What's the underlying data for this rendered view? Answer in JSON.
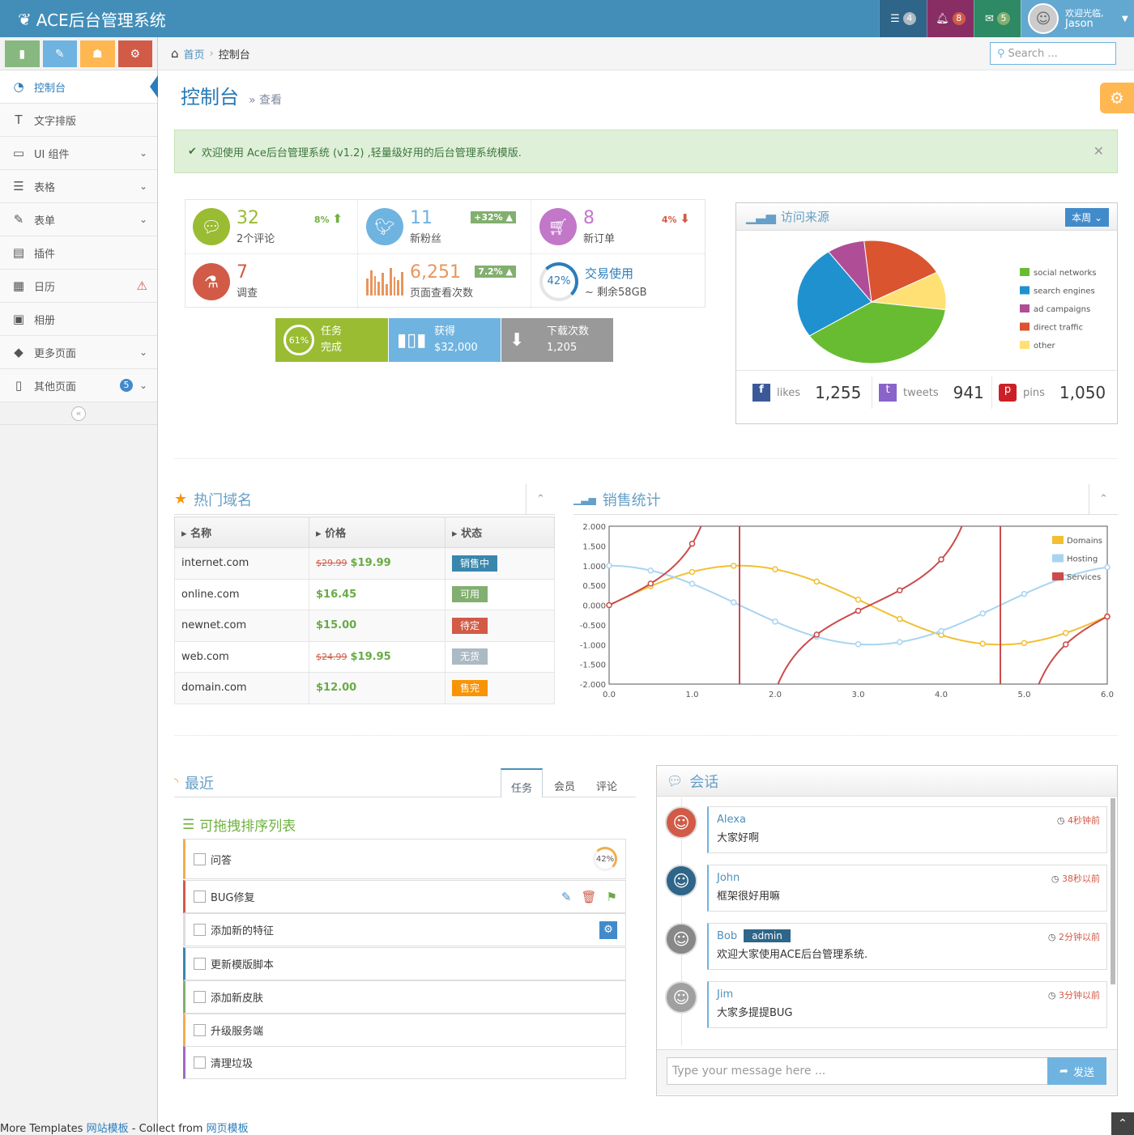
{
  "brand": {
    "title": "ACE后台管理系统"
  },
  "navbar": {
    "tasks_count": "4",
    "notifications_count": "8",
    "messages_count": "5",
    "user_welcome": "欢迎光临,",
    "user_name": "Jason"
  },
  "sidebar": {
    "items": [
      {
        "label": "控制台",
        "icon": "dashboard-icon"
      },
      {
        "label": "文字排版",
        "icon": "text-icon"
      },
      {
        "label": "UI 组件",
        "icon": "desktop-icon"
      },
      {
        "label": "表格",
        "icon": "list-icon"
      },
      {
        "label": "表单",
        "icon": "edit-icon"
      },
      {
        "label": "插件",
        "icon": "list-alt-icon"
      },
      {
        "label": "日历",
        "icon": "calendar-icon"
      },
      {
        "label": "相册",
        "icon": "picture-icon"
      },
      {
        "label": "更多页面",
        "icon": "tag-icon"
      },
      {
        "label": "其他页面",
        "icon": "file-icon",
        "badge": "5"
      }
    ]
  },
  "breadcrumb": {
    "home": "首页",
    "current": "控制台"
  },
  "search": {
    "placeholder": "Search ..."
  },
  "page": {
    "title": "控制台",
    "subtitle": "查看"
  },
  "alert": {
    "text": "欢迎使用 Ace后台管理系统 (v1.2) ,轻量级好用的后台管理系统模版."
  },
  "infoboxes": [
    {
      "value": "32",
      "label": "2个评论",
      "stat": "8%"
    },
    {
      "value": "11",
      "label": "新粉丝",
      "stat": "+32%"
    },
    {
      "value": "8",
      "label": "新订单",
      "stat": "4%"
    },
    {
      "value": "7",
      "label": "调查"
    },
    {
      "value": "6,251",
      "label": "页面查看次数",
      "stat": "7.2%"
    },
    {
      "value": "交易使用",
      "label": "~ 剩余58GB",
      "percent": "42%"
    }
  ],
  "tiles": [
    {
      "pct": "61%",
      "line1": "任务",
      "line2": "完成"
    },
    {
      "line1": "获得",
      "line2": "$32,000"
    },
    {
      "line1": "下载次数",
      "line2": "1,205"
    }
  ],
  "traffic": {
    "title": "访问来源",
    "range": "本周",
    "legend": [
      "social networks",
      "search engines",
      "ad campaigns",
      "direct traffic",
      "other"
    ],
    "colors": [
      "#68bc31",
      "#2091cf",
      "#af4e96",
      "#da5430",
      "#fee074"
    ],
    "values": [
      38.7,
      24.5,
      8.2,
      18.6,
      10.0
    ],
    "social": [
      {
        "label": "likes",
        "value": "1,255"
      },
      {
        "label": "tweets",
        "value": "941"
      },
      {
        "label": "pins",
        "value": "1,050"
      }
    ]
  },
  "domains": {
    "title": "热门域名",
    "headers": [
      "名称",
      "价格",
      "状态"
    ],
    "rows": [
      {
        "name": "internet.com",
        "old": "$29.99",
        "price": "$19.99",
        "status": "销售中",
        "color": "#3a87ad"
      },
      {
        "name": "online.com",
        "old": "",
        "price": "$16.45",
        "status": "可用",
        "color": "#82af6f"
      },
      {
        "name": "newnet.com",
        "old": "",
        "price": "$15.00",
        "status": "待定",
        "color": "#d15b47"
      },
      {
        "name": "web.com",
        "old": "$24.99",
        "price": "$19.95",
        "status": "无货",
        "color": "#abbac3"
      },
      {
        "name": "domain.com",
        "old": "",
        "price": "$12.00",
        "status": "售完",
        "color": "#f89406"
      }
    ]
  },
  "sales": {
    "title": "销售统计"
  },
  "chart_data": {
    "type": "line",
    "title": "",
    "xlim": [
      0,
      6
    ],
    "ylim": [
      -2,
      2
    ],
    "xticks": [
      "0.0",
      "1.0",
      "2.0",
      "3.0",
      "4.0",
      "5.0",
      "6.0"
    ],
    "yticks": [
      "2.000",
      "1.500",
      "1.000",
      "0.500",
      "0.000",
      "-0.500",
      "-1.000",
      "-1.500",
      "-2.000"
    ],
    "series": [
      {
        "name": "Domains",
        "color": "#f2bf33",
        "fn": "sin"
      },
      {
        "name": "Hosting",
        "color": "#a8d4f1",
        "fn": "cos"
      },
      {
        "name": "Services",
        "color": "#cb4b4b",
        "fn": "tan"
      }
    ]
  },
  "recent": {
    "title": "最近",
    "tabs": [
      "任务",
      "会员",
      "评论"
    ],
    "list_title": "可拖拽排序列表",
    "tasks": [
      {
        "label": "问答",
        "color": "#f0ad4e",
        "pct": "42%"
      },
      {
        "label": "BUG修复",
        "color": "#d15b47"
      },
      {
        "label": "添加新的特征",
        "color": "#dddddd"
      },
      {
        "label": "更新模版脚本",
        "color": "#3a87ad"
      },
      {
        "label": "添加新皮肤",
        "color": "#82af6f"
      },
      {
        "label": "升级服务端",
        "color": "#f0ad4e"
      },
      {
        "label": "清理垃圾",
        "color": "#a069c3"
      }
    ]
  },
  "chat": {
    "title": "会话",
    "messages": [
      {
        "name": "Alexa",
        "text": "大家好啊",
        "time": "4秒钟前"
      },
      {
        "name": "John",
        "text": "框架很好用嘛",
        "time": "38秒以前"
      },
      {
        "name": "Bob",
        "badge": "admin",
        "text": "欢迎大家使用ACE后台管理系统.",
        "time": "2分钟以前"
      },
      {
        "name": "Jim",
        "text": "大家多提提BUG",
        "time": "3分钟以前"
      }
    ],
    "input_placeholder": "Type your message here ...",
    "send_label": "发送"
  },
  "footer": {
    "prefix": "More Templates ",
    "link1": "网站模板",
    "mid": " - Collect from ",
    "link2": "网页模板"
  }
}
